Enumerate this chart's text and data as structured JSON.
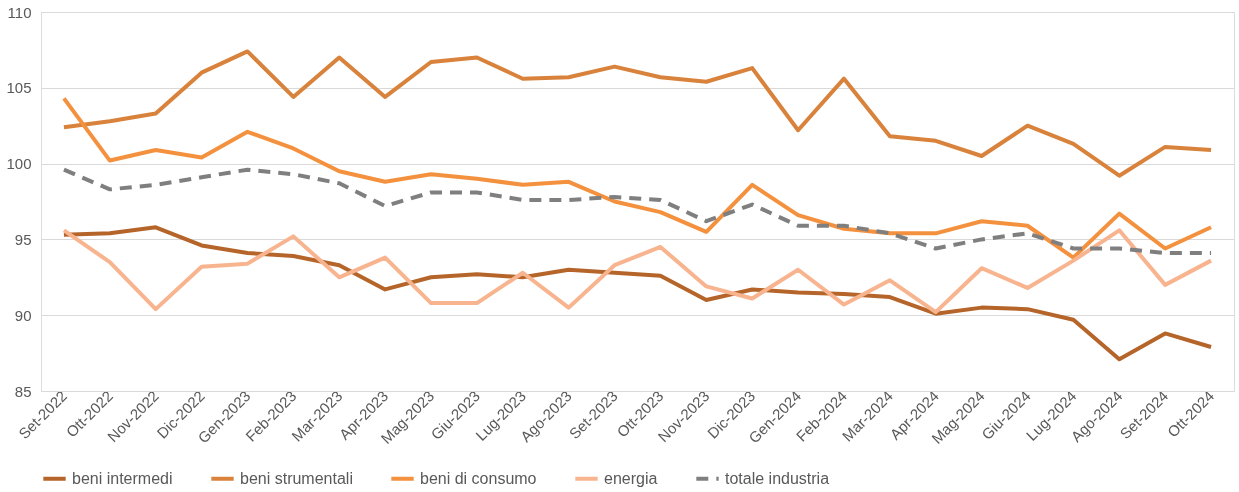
{
  "chart_data": {
    "type": "line",
    "categories": [
      "Set-2022",
      "Ott-2022",
      "Nov-2022",
      "Dic-2022",
      "Gen-2023",
      "Feb-2023",
      "Mar-2023",
      "Apr-2023",
      "Mag-2023",
      "Giu-2023",
      "Lug-2023",
      "Ago-2023",
      "Set-2023",
      "Ott-2023",
      "Nov-2023",
      "Dic-2023",
      "Gen-2024",
      "Feb-2024",
      "Mar-2024",
      "Apr-2024",
      "Mag-2024",
      "Giu-2024",
      "Lug-2024",
      "Ago-2024",
      "Set-2024",
      "Ott-2024"
    ],
    "series": [
      {
        "name": "beni intermedi",
        "color": "#b5652a",
        "line_style": "solid",
        "values": [
          95.3,
          95.4,
          95.8,
          94.6,
          94.1,
          93.9,
          93.3,
          91.7,
          92.5,
          92.7,
          92.5,
          93.0,
          92.8,
          92.6,
          91.0,
          91.7,
          91.5,
          91.4,
          91.2,
          90.1,
          90.5,
          90.4,
          89.7,
          87.1,
          88.8,
          87.9
        ]
      },
      {
        "name": "beni strumentali",
        "color": "#d8823b",
        "line_style": "solid",
        "values": [
          102.4,
          102.8,
          103.3,
          106.0,
          107.4,
          104.4,
          107.0,
          104.4,
          106.7,
          107.0,
          105.6,
          105.7,
          106.4,
          105.7,
          105.4,
          106.3,
          102.2,
          105.6,
          101.8,
          101.5,
          100.5,
          102.5,
          101.3,
          99.2,
          101.1,
          100.9
        ]
      },
      {
        "name": "beni di consumo",
        "color": "#f4913e",
        "line_style": "solid",
        "values": [
          104.3,
          100.2,
          100.9,
          100.4,
          102.1,
          101.0,
          99.5,
          98.8,
          99.3,
          99.0,
          98.6,
          98.8,
          97.5,
          96.8,
          95.5,
          98.6,
          96.6,
          95.7,
          95.4,
          95.4,
          96.2,
          95.9,
          93.8,
          96.7,
          94.4,
          95.8
        ]
      },
      {
        "name": "energia",
        "color": "#f8b48f",
        "line_style": "solid",
        "values": [
          95.6,
          93.5,
          90.4,
          93.2,
          93.4,
          95.2,
          92.5,
          93.8,
          90.8,
          90.8,
          92.8,
          90.5,
          93.3,
          94.5,
          91.9,
          91.1,
          93.0,
          90.7,
          92.3,
          90.2,
          93.1,
          91.8,
          93.6,
          95.6,
          92.0,
          93.6
        ]
      },
      {
        "name": "totale industria",
        "color": "#7f7f7f",
        "line_style": "dashed",
        "values": [
          99.6,
          98.3,
          98.6,
          99.1,
          99.6,
          99.3,
          98.7,
          97.2,
          98.1,
          98.1,
          97.6,
          97.6,
          97.8,
          97.6,
          96.2,
          97.3,
          95.9,
          95.9,
          95.4,
          94.4,
          95.0,
          95.4,
          94.4,
          94.4,
          94.1,
          94.1
        ]
      }
    ],
    "ylim": [
      85,
      110
    ],
    "yticks": [
      85,
      90,
      95,
      100,
      105,
      110
    ],
    "grid": "y",
    "legend": "bottom"
  }
}
